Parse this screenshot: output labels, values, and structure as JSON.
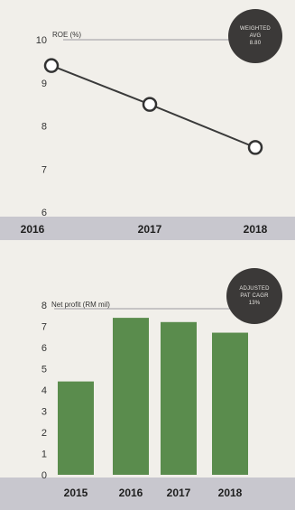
{
  "colors": {
    "accent": "#5a8c4d",
    "line": "#3a3a3a",
    "axis_band": "#c8c7ce",
    "badge": "#3b3938"
  },
  "chart_data": [
    {
      "type": "line",
      "title": "ROE (%)",
      "x": [
        "2016",
        "2017",
        "2018"
      ],
      "series": [
        {
          "values": [
            9.4,
            8.5,
            7.5
          ]
        }
      ],
      "yticks": [
        "6",
        "7",
        "8",
        "9",
        "10"
      ],
      "ylim": [
        6,
        10
      ],
      "badge": {
        "line1": "WEIGHTED",
        "line2": "AVG",
        "line3": "8.80"
      }
    },
    {
      "type": "bar",
      "title": "Net profit (RM mil)",
      "categories": [
        "2015",
        "2016",
        "2017",
        "2018"
      ],
      "values": [
        4.4,
        7.4,
        7.2,
        6.7
      ],
      "yticks": [
        "0",
        "1",
        "2",
        "3",
        "4",
        "5",
        "6",
        "7",
        "8"
      ],
      "ylim": [
        0,
        8
      ],
      "badge": {
        "line1": "ADJUSTED",
        "line2": "PAT CAGR",
        "line3": "13%"
      }
    }
  ]
}
